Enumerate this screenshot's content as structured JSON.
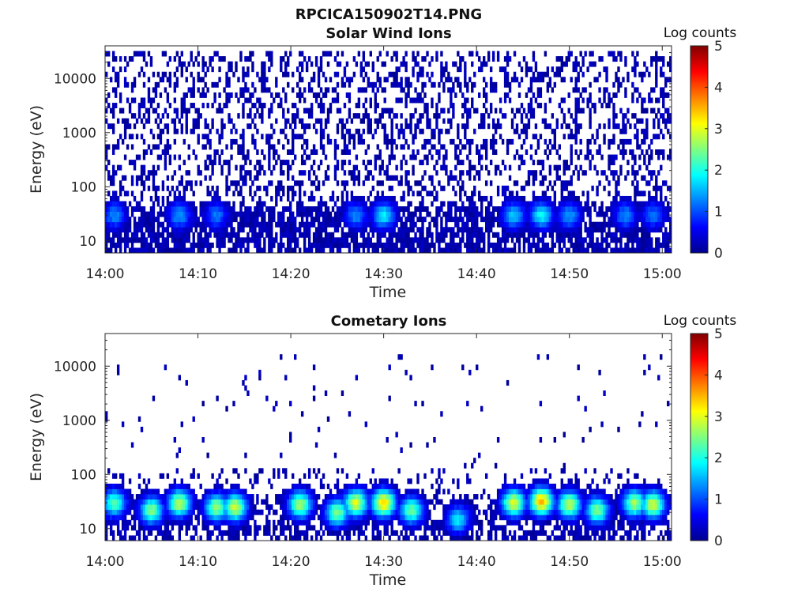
{
  "figure": {
    "title": "RPCICA150902T14.PNG"
  },
  "colormap": {
    "name": "jet",
    "stops": [
      "#00008f",
      "#0000ff",
      "#0080ff",
      "#00ffff",
      "#80ff80",
      "#ffff00",
      "#ff8000",
      "#ff0000",
      "#800000"
    ]
  },
  "chart_data": [
    {
      "type": "heatmap",
      "title": "Solar Wind Ions",
      "xlabel": "Time",
      "ylabel": "Energy (eV)",
      "x_range": [
        "14:00",
        "15:01"
      ],
      "x_ticks": [
        "14:00",
        "14:10",
        "14:20",
        "14:30",
        "14:40",
        "14:50",
        "15:00"
      ],
      "y_scale": "log",
      "y_range": [
        6,
        40000
      ],
      "y_ticks": [
        "10",
        "100",
        "1000",
        "10000"
      ],
      "colorbar": {
        "label": "Log counts",
        "range": [
          0,
          5
        ],
        "ticks": [
          "0",
          "1",
          "2",
          "3",
          "4",
          "5"
        ]
      },
      "description": "Sparse single-count speckle (log counts ~0) across 10 eV-30 keV; denser low-energy bands below ~40 eV with periodic enhancements up to ~1.5-2 log counts.",
      "peaks": [
        {
          "time": "14:01",
          "energy_ev": 30,
          "log_counts": 1.3
        },
        {
          "time": "14:08",
          "energy_ev": 30,
          "log_counts": 1.4
        },
        {
          "time": "14:12",
          "energy_ev": 30,
          "log_counts": 1.2
        },
        {
          "time": "14:27",
          "energy_ev": 30,
          "log_counts": 1.3
        },
        {
          "time": "14:30",
          "energy_ev": 30,
          "log_counts": 1.8
        },
        {
          "time": "14:44",
          "energy_ev": 30,
          "log_counts": 1.6
        },
        {
          "time": "14:47",
          "energy_ev": 30,
          "log_counts": 1.9
        },
        {
          "time": "14:50",
          "energy_ev": 30,
          "log_counts": 1.4
        },
        {
          "time": "14:56",
          "energy_ev": 30,
          "log_counts": 1.3
        },
        {
          "time": "14:59",
          "energy_ev": 30,
          "log_counts": 1.2
        }
      ],
      "speckle": {
        "density": 0.34,
        "energy_max_ev": 30000,
        "low_energy_density": 0.75
      }
    },
    {
      "type": "heatmap",
      "title": "Cometary Ions",
      "xlabel": "Time",
      "ylabel": "Energy (eV)",
      "x_range": [
        "14:00",
        "15:01"
      ],
      "x_ticks": [
        "14:00",
        "14:10",
        "14:20",
        "14:30",
        "14:40",
        "14:50",
        "15:00"
      ],
      "y_scale": "log",
      "y_range": [
        6,
        40000
      ],
      "y_ticks": [
        "10",
        "100",
        "1000",
        "10000"
      ],
      "colorbar": {
        "label": "Log counts",
        "range": [
          0,
          5
        ],
        "ticks": [
          "0",
          "1",
          "2",
          "3",
          "4",
          "5"
        ]
      },
      "description": "Mostly empty above 100 eV with isolated single counts; intense cometary ion patches at 15-40 eV with log counts up to ~3.5.",
      "peaks": [
        {
          "time": "14:01",
          "energy_ev": 30,
          "log_counts": 2.3
        },
        {
          "time": "14:05",
          "energy_ev": 22,
          "log_counts": 2.5
        },
        {
          "time": "14:08",
          "energy_ev": 30,
          "log_counts": 2.8
        },
        {
          "time": "14:12",
          "energy_ev": 25,
          "log_counts": 2.6
        },
        {
          "time": "14:14",
          "energy_ev": 25,
          "log_counts": 2.9
        },
        {
          "time": "14:21",
          "energy_ev": 28,
          "log_counts": 2.7
        },
        {
          "time": "14:25",
          "energy_ev": 20,
          "log_counts": 2.5
        },
        {
          "time": "14:27",
          "energy_ev": 30,
          "log_counts": 3.0
        },
        {
          "time": "14:30",
          "energy_ev": 30,
          "log_counts": 3.4
        },
        {
          "time": "14:33",
          "energy_ev": 22,
          "log_counts": 2.4
        },
        {
          "time": "14:38",
          "energy_ev": 15,
          "log_counts": 1.8
        },
        {
          "time": "14:44",
          "energy_ev": 30,
          "log_counts": 3.0
        },
        {
          "time": "14:47",
          "energy_ev": 32,
          "log_counts": 3.5
        },
        {
          "time": "14:50",
          "energy_ev": 28,
          "log_counts": 2.8
        },
        {
          "time": "14:53",
          "energy_ev": 22,
          "log_counts": 2.5
        },
        {
          "time": "14:57",
          "energy_ev": 30,
          "log_counts": 2.7
        },
        {
          "time": "14:59",
          "energy_ev": 28,
          "log_counts": 2.9
        }
      ],
      "speckle": {
        "density": 0.02,
        "energy_max_ev": 16000,
        "low_energy_density": 0.55
      }
    }
  ]
}
